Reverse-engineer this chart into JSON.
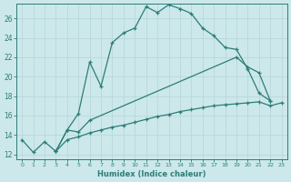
{
  "xlabel": "Humidex (Indice chaleur)",
  "bg_color": "#cce8ea",
  "grid_color": "#b8d8dc",
  "line_color": "#2d7d78",
  "ylim": [
    11.5,
    27.5
  ],
  "xlim": [
    -0.5,
    23.5
  ],
  "yticks": [
    12,
    14,
    16,
    18,
    20,
    22,
    24,
    26
  ],
  "xticks": [
    0,
    1,
    2,
    3,
    4,
    5,
    6,
    7,
    8,
    9,
    10,
    11,
    12,
    13,
    14,
    15,
    16,
    17,
    18,
    19,
    20,
    21,
    22,
    23
  ],
  "line1_x": [
    0,
    1,
    2,
    3,
    4,
    5,
    6,
    7,
    8,
    9,
    10,
    11,
    12,
    13,
    14,
    15,
    16,
    17,
    18,
    19,
    20,
    21,
    22
  ],
  "line1_y": [
    13.5,
    12.2,
    13.3,
    12.3,
    14.5,
    16.2,
    21.5,
    19.0,
    23.5,
    24.5,
    25.0,
    27.2,
    26.6,
    27.4,
    27.0,
    26.5,
    25.0,
    24.2,
    23.0,
    22.8,
    20.8,
    18.3,
    17.5
  ],
  "line2_x": [
    3,
    4,
    5,
    6,
    19,
    20,
    21,
    22
  ],
  "line2_y": [
    12.3,
    14.5,
    14.3,
    15.5,
    22.0,
    21.0,
    20.4,
    17.5
  ],
  "line3_x": [
    3,
    4,
    5,
    6,
    7,
    8,
    9,
    10,
    11,
    12,
    13,
    14,
    15,
    16,
    17,
    18,
    19,
    20,
    21,
    22,
    23
  ],
  "line3_y": [
    12.3,
    13.5,
    13.8,
    14.2,
    14.5,
    14.8,
    15.0,
    15.3,
    15.6,
    15.9,
    16.1,
    16.4,
    16.6,
    16.8,
    17.0,
    17.1,
    17.2,
    17.3,
    17.4,
    17.0,
    17.3
  ]
}
